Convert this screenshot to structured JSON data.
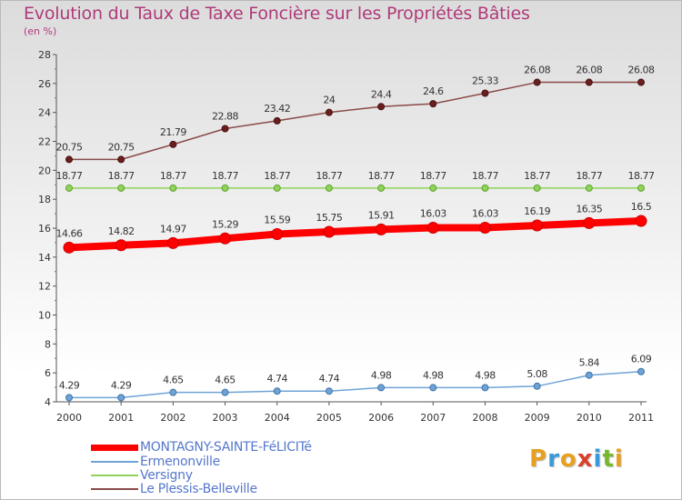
{
  "title": "Evolution du Taux de Taxe Foncière sur les Propriétés Bâties",
  "unit": "(en %)",
  "logo": {
    "text": "Proxiti",
    "letters": [
      "P",
      "r",
      "o",
      "x",
      "i",
      "t",
      "i"
    ],
    "colors": [
      "#e8a020",
      "#3a9ad9",
      "#e8a020",
      "#d9402a",
      "#3a9ad9",
      "#79b82e",
      "#e8a020"
    ]
  },
  "chart_data": {
    "type": "line",
    "title": "Evolution du Taux de Taxe Foncière sur les Propriétés Bâties",
    "ylabel": "(en %)",
    "xlabel": "",
    "x": [
      "2000",
      "2001",
      "2002",
      "2003",
      "2004",
      "2005",
      "2006",
      "2007",
      "2008",
      "2009",
      "2010",
      "2011"
    ],
    "ylim": [
      4,
      28
    ],
    "yticks": [
      4,
      6,
      8,
      10,
      12,
      14,
      16,
      18,
      20,
      22,
      24,
      26,
      28
    ],
    "grid": false,
    "legend_position": "bottom-left",
    "series": [
      {
        "name": "MONTAGNY-SAINTE-FéLICITé",
        "color": "#ff0000",
        "labels": [
          "14.66",
          "14.82",
          "14.97",
          "15.29",
          "15.59",
          "15.75",
          "15.91",
          "16.03",
          "16.03",
          "16.19",
          "16.35",
          "16.5"
        ],
        "values": [
          14.66,
          14.82,
          14.97,
          15.29,
          15.59,
          15.75,
          15.91,
          16.03,
          16.03,
          16.19,
          16.35,
          16.5
        ]
      },
      {
        "name": "Ermenonville",
        "color": "#6fa3d6",
        "labels": [
          "4.29",
          "4.29",
          "4.65",
          "4.65",
          "4.74",
          "4.74",
          "4.98",
          "4.98",
          "4.98",
          "5.08",
          "5.84",
          "6.09"
        ],
        "values": [
          4.29,
          4.29,
          4.65,
          4.65,
          4.74,
          4.74,
          4.98,
          4.98,
          4.98,
          5.08,
          5.84,
          6.09
        ]
      },
      {
        "name": "Versigny",
        "color": "#8fd35a",
        "labels": [
          "18.77",
          "18.77",
          "18.77",
          "18.77",
          "18.77",
          "18.77",
          "18.77",
          "18.77",
          "18.77",
          "18.77",
          "18.77",
          "18.77"
        ],
        "values": [
          18.77,
          18.77,
          18.77,
          18.77,
          18.77,
          18.77,
          18.77,
          18.77,
          18.77,
          18.77,
          18.77,
          18.77
        ]
      },
      {
        "name": "Le Plessis-Belleville",
        "color": "#8b4a4a",
        "labels": [
          "20.75",
          "20.75",
          "21.79",
          "22.88",
          "23.42",
          "24",
          "24.4",
          "24.6",
          "25.33",
          "26.08",
          "26.08",
          "26.08"
        ],
        "values": [
          20.75,
          20.75,
          21.79,
          22.88,
          23.42,
          24,
          24.4,
          24.6,
          25.33,
          26.08,
          26.08,
          26.08
        ]
      }
    ]
  }
}
